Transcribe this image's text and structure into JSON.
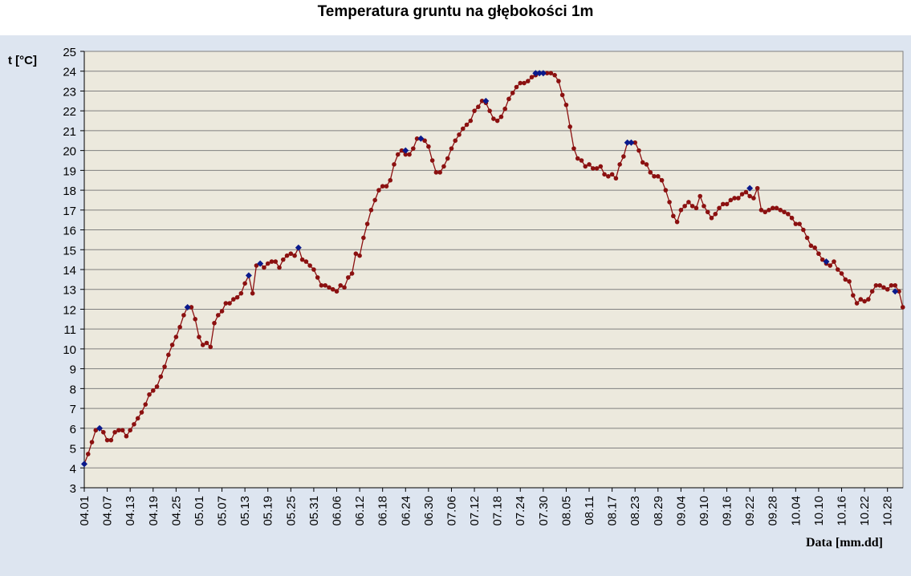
{
  "chart_data": {
    "type": "line",
    "title": "Temperatura gruntu na głębokości 1m",
    "ylabel": "t  [°C]",
    "xlabel": "Data [mm.dd]",
    "ylim": [
      3,
      25
    ],
    "yticks": [
      3,
      4,
      5,
      6,
      7,
      8,
      9,
      10,
      11,
      12,
      13,
      14,
      15,
      16,
      17,
      18,
      19,
      20,
      21,
      22,
      23,
      24,
      25
    ],
    "x_ticks": [
      "04.01",
      "04.07",
      "04.13",
      "04.19",
      "04.25",
      "05.01",
      "05.07",
      "05.13",
      "05.19",
      "05.25",
      "05.31",
      "06.06",
      "06.12",
      "06.18",
      "06.24",
      "06.30",
      "07.06",
      "07.12",
      "07.18",
      "07.24",
      "07.30",
      "08.05",
      "08.11",
      "08.17",
      "08.23",
      "08.29",
      "09.04",
      "09.10",
      "09.16",
      "09.22",
      "09.28",
      "10.04",
      "10.10",
      "10.16",
      "10.22",
      "10.28"
    ],
    "grid": true,
    "line_color": "#8b1010",
    "marker_color": "#8b1010",
    "highlight_color": "#0a1a8c",
    "series": [
      {
        "values": [
          4.2,
          4.7,
          5.3,
          5.9,
          6.0,
          5.8,
          5.4,
          5.4,
          5.8,
          5.9,
          5.9,
          5.6,
          5.9,
          6.2,
          6.5,
          6.8,
          7.2,
          7.7,
          7.9,
          8.1,
          8.6,
          9.1,
          9.7,
          10.2,
          10.6,
          11.1,
          11.7,
          12.1,
          12.1,
          11.5,
          10.6,
          10.2,
          10.3,
          10.1,
          11.3,
          11.7,
          11.9,
          12.3,
          12.3,
          12.5,
          12.6,
          12.8,
          13.3,
          13.7,
          12.8,
          14.2,
          14.3,
          14.1,
          14.3,
          14.4,
          14.4,
          14.1,
          14.5,
          14.7,
          14.8,
          14.7,
          15.1,
          14.5,
          14.4,
          14.2,
          14.0,
          13.6,
          13.2,
          13.2,
          13.1,
          13.0,
          12.9,
          13.2,
          13.1,
          13.6,
          13.8,
          14.8,
          14.7,
          15.6,
          16.3,
          17.0,
          17.5,
          18.0,
          18.2,
          18.2,
          18.5,
          19.3,
          19.8,
          20.0,
          19.8,
          19.8,
          20.1,
          20.6,
          20.6,
          20.5,
          20.2,
          19.5,
          18.9,
          18.9,
          19.2,
          19.6,
          20.1,
          20.5,
          20.8,
          21.1,
          21.3,
          21.5,
          22.0,
          22.2,
          22.5,
          22.4,
          22.0,
          21.6,
          21.5,
          21.7,
          22.1,
          22.6,
          22.9,
          23.2,
          23.4,
          23.4,
          23.5,
          23.7,
          23.8,
          23.9,
          23.9,
          23.9,
          23.9,
          23.8,
          23.5,
          22.8,
          22.3,
          21.2,
          20.1,
          19.6,
          19.5,
          19.2,
          19.3,
          19.1,
          19.1,
          19.2,
          18.8,
          18.7,
          18.8,
          18.6,
          19.3,
          19.7,
          20.4,
          20.4,
          20.4,
          20.0,
          19.4,
          19.3,
          18.9,
          18.7,
          18.7,
          18.5,
          18.0,
          17.4,
          16.7,
          16.4,
          17.0,
          17.2,
          17.4,
          17.2,
          17.1,
          17.7,
          17.2,
          16.9,
          16.6,
          16.8,
          17.1,
          17.3,
          17.3,
          17.5,
          17.6,
          17.6,
          17.8,
          17.9,
          17.7,
          17.6,
          18.1,
          17.0,
          16.9,
          17.0,
          17.1,
          17.1,
          17.0,
          16.9,
          16.8,
          16.6,
          16.3,
          16.3,
          16.0,
          15.6,
          15.2,
          15.1,
          14.8,
          14.5,
          14.3,
          14.2,
          14.4,
          14.0,
          13.8,
          13.5,
          13.4,
          12.7,
          12.3,
          12.5,
          12.4,
          12.5,
          12.9,
          13.2,
          13.2,
          13.1,
          13.0,
          13.2,
          13.2,
          12.9,
          12.1
        ],
        "highlighted_points": [
          {
            "x": "04.01",
            "y": 4.2
          },
          {
            "x": "04.05",
            "y": 6.0
          },
          {
            "x": "04.28",
            "y": 12.1
          },
          {
            "x": "05.14",
            "y": 13.7
          },
          {
            "x": "05.17",
            "y": 14.3
          },
          {
            "x": "05.27",
            "y": 15.1
          },
          {
            "x": "06.24",
            "y": 20.0
          },
          {
            "x": "06.28",
            "y": 20.6
          },
          {
            "x": "07.15",
            "y": 22.5
          },
          {
            "x": "07.28",
            "y": 23.9
          },
          {
            "x": "07.29",
            "y": 23.9
          },
          {
            "x": "07.30",
            "y": 23.9
          },
          {
            "x": "08.21",
            "y": 20.4
          },
          {
            "x": "08.22",
            "y": 20.4
          },
          {
            "x": "09.22",
            "y": 18.1
          },
          {
            "x": "10.12",
            "y": 14.4
          },
          {
            "x": "10.30",
            "y": 12.9
          }
        ]
      }
    ]
  }
}
